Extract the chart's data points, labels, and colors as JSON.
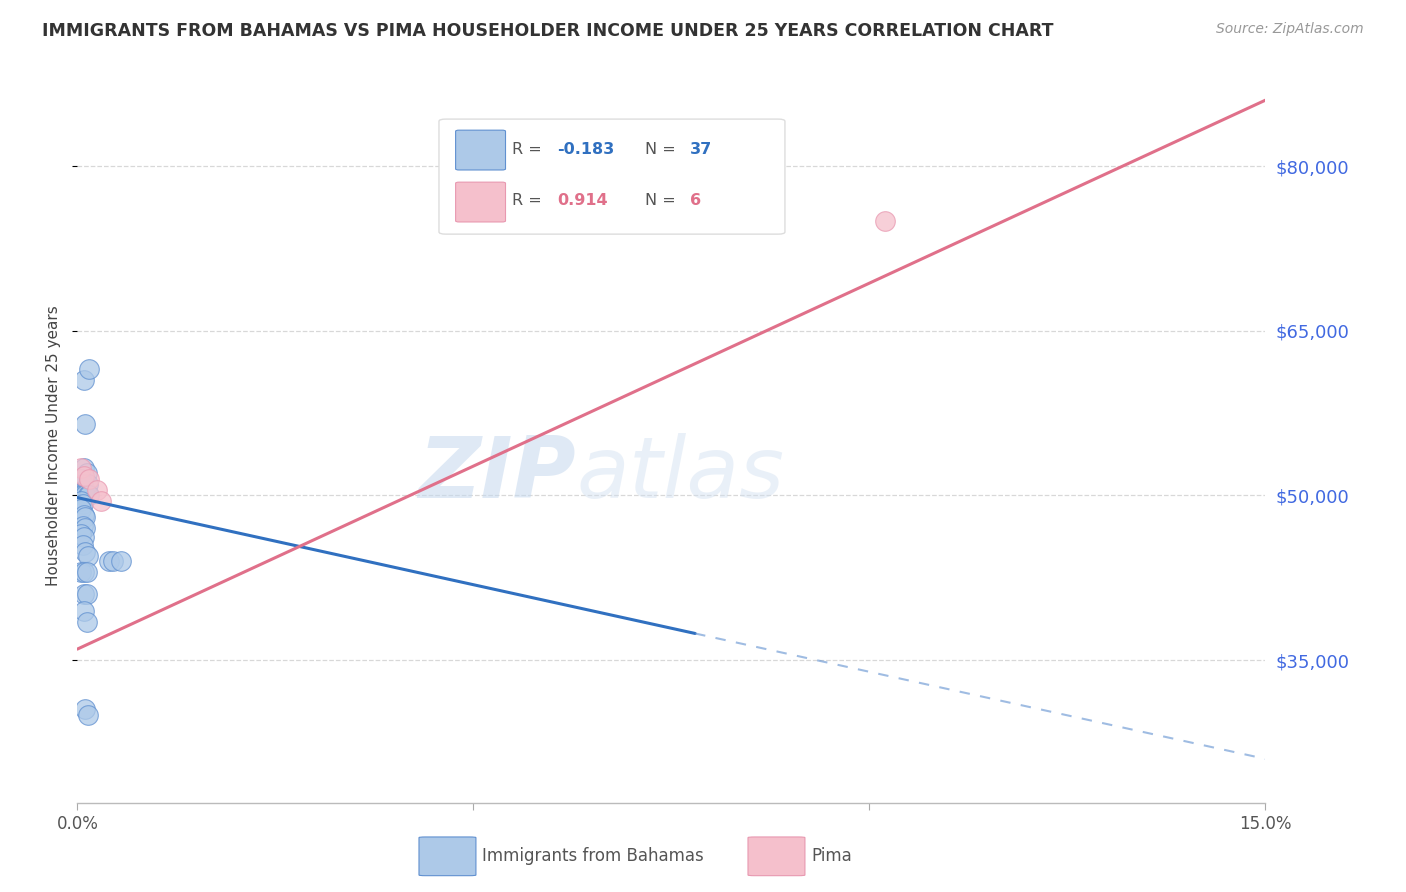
{
  "title": "IMMIGRANTS FROM BAHAMAS VS PIMA HOUSEHOLDER INCOME UNDER 25 YEARS CORRELATION CHART",
  "source": "Source: ZipAtlas.com",
  "ylabel": "Householder Income Under 25 years",
  "right_ytick_labels": [
    "$35,000",
    "$50,000",
    "$65,000",
    "$80,000"
  ],
  "right_ytick_values": [
    35000,
    50000,
    65000,
    80000
  ],
  "legend_blue_label": "Immigrants from Bahamas",
  "legend_pink_label": "Pima",
  "watermark_zip": "ZIP",
  "watermark_atlas": "atlas",
  "blue_color": "#adc9e8",
  "blue_line_color": "#3070c0",
  "blue_edge_color": "#6090d0",
  "pink_color": "#f5c0cc",
  "pink_line_color": "#e0708a",
  "pink_edge_color": "#e898b0",
  "blue_scatter": [
    [
      0.0008,
      60500
    ],
    [
      0.0015,
      61500
    ],
    [
      0.001,
      56500
    ],
    [
      0.0008,
      52500
    ],
    [
      0.0012,
      52000
    ],
    [
      0.0005,
      51500
    ],
    [
      0.0007,
      51000
    ],
    [
      0.001,
      50500
    ],
    [
      0.0013,
      51000
    ],
    [
      0.0005,
      50000
    ],
    [
      0.0007,
      50000
    ],
    [
      0.001,
      50000
    ],
    [
      0.0013,
      50000
    ],
    [
      0.0015,
      50000
    ],
    [
      0.0005,
      49500
    ],
    [
      0.0007,
      49200
    ],
    [
      0.0005,
      48800
    ],
    [
      0.0008,
      48200
    ],
    [
      0.001,
      48000
    ],
    [
      0.0007,
      47200
    ],
    [
      0.001,
      47000
    ],
    [
      0.0005,
      46500
    ],
    [
      0.0008,
      46200
    ],
    [
      0.0007,
      45500
    ],
    [
      0.001,
      44800
    ],
    [
      0.0013,
      44500
    ],
    [
      0.004,
      44000
    ],
    [
      0.0045,
      44000
    ],
    [
      0.0055,
      44000
    ],
    [
      0.0005,
      43000
    ],
    [
      0.0008,
      43000
    ],
    [
      0.0012,
      43000
    ],
    [
      0.0008,
      41000
    ],
    [
      0.0012,
      41000
    ],
    [
      0.0008,
      39500
    ],
    [
      0.0012,
      38500
    ],
    [
      0.001,
      30500
    ],
    [
      0.0013,
      30000
    ]
  ],
  "pink_scatter": [
    [
      0.0005,
      52500
    ],
    [
      0.0008,
      51800
    ],
    [
      0.0015,
      51500
    ],
    [
      0.0025,
      50500
    ],
    [
      0.003,
      49500
    ],
    [
      0.102,
      75000
    ]
  ],
  "blue_line_x0": 0.0,
  "blue_line_x_solid_end": 0.078,
  "blue_line_x1": 0.15,
  "blue_line_y0": 49800,
  "blue_line_y1": 26000,
  "pink_line_x0": 0.0,
  "pink_line_x1": 0.15,
  "pink_line_y0": 36000,
  "pink_line_y1": 86000,
  "xlim": [
    0.0,
    0.15
  ],
  "ylim": [
    22000,
    87000
  ],
  "xticks": [
    0.0,
    0.05,
    0.1,
    0.15
  ],
  "xtick_labels": [
    "0.0%",
    "",
    "",
    "15.0%"
  ],
  "grid_color": "#d8d8d8",
  "spine_color": "#cccccc"
}
